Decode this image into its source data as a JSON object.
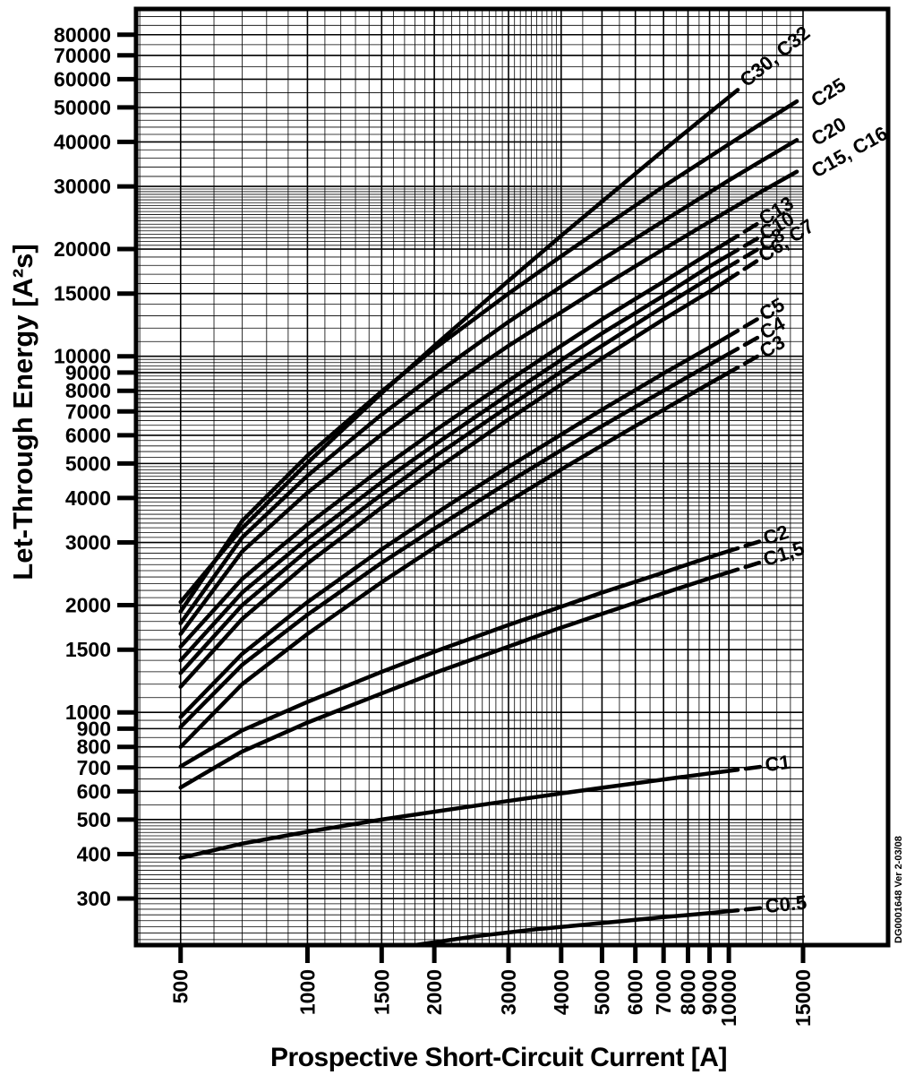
{
  "page": {
    "background": "#ffffff",
    "ink": "#000000"
  },
  "footer": {
    "doc_number": "DG0001648 Ver 2-03/08"
  },
  "chart_data": {
    "type": "line",
    "title": "",
    "xlabel": "Prospective Short-Circuit Current [A]",
    "ylabel": "Let-Through Energy [A²s]",
    "x_scale": "log",
    "y_scale": "log",
    "x_range": [
      392,
      15000
    ],
    "y_range": [
      222,
      94500
    ],
    "grid": true,
    "x_ticks": [
      500,
      1000,
      1500,
      2000,
      3000,
      4000,
      5000,
      6000,
      7000,
      8000,
      9000,
      10000,
      15000
    ],
    "y_ticks": [
      300,
      400,
      500,
      600,
      700,
      800,
      900,
      1000,
      1500,
      2000,
      3000,
      4000,
      5000,
      6000,
      7000,
      8000,
      9000,
      10000,
      15000,
      20000,
      30000,
      40000,
      50000,
      60000,
      70000,
      80000
    ],
    "x_minor": [
      {
        "from": 400,
        "to": 4000,
        "step": 100
      },
      {
        "from": 4000,
        "to": 10000,
        "step": 500
      },
      {
        "from": 10000,
        "to": 15000,
        "step": 1000
      }
    ],
    "y_minor": [
      {
        "from": 230,
        "to": 500,
        "step": 10
      },
      {
        "from": 500,
        "to": 1000,
        "step": 50
      },
      {
        "from": 1000,
        "to": 5000,
        "step": 100
      },
      {
        "from": 5000,
        "to": 10000,
        "step": 200
      },
      {
        "from": 10000,
        "to": 20000,
        "step": 1000
      },
      {
        "from": 20000,
        "to": 30000,
        "step": 500
      },
      {
        "from": 30000,
        "to": 50000,
        "step": 2000
      },
      {
        "from": 50000,
        "to": 90000,
        "step": 5000
      }
    ],
    "legend_position": "labels-at-curve-ends",
    "series": [
      {
        "name": "C30, C32",
        "leader": false,
        "label_outside": false,
        "points": [
          [
            500,
            2040
          ],
          [
            700,
            3290
          ],
          [
            1000,
            5020
          ],
          [
            1500,
            7880
          ],
          [
            2000,
            10700
          ],
          [
            3000,
            16300
          ],
          [
            4000,
            21800
          ],
          [
            5000,
            27200
          ],
          [
            7000,
            37900
          ],
          [
            9000,
            48300
          ],
          [
            10500,
            56000
          ]
        ]
      },
      {
        "name": "C25",
        "leader": false,
        "label_outside": true,
        "points": [
          [
            500,
            1920
          ],
          [
            700,
            3450
          ],
          [
            1000,
            5260
          ],
          [
            1500,
            7970
          ],
          [
            2000,
            10500
          ],
          [
            3000,
            15000
          ],
          [
            4000,
            19100
          ],
          [
            5000,
            22900
          ],
          [
            7000,
            30000
          ],
          [
            10000,
            39400
          ],
          [
            12000,
            45200
          ],
          [
            14500,
            52000
          ]
        ]
      },
      {
        "name": "C20",
        "leader": false,
        "label_outside": true,
        "points": [
          [
            500,
            1780
          ],
          [
            700,
            3100
          ],
          [
            1000,
            4620
          ],
          [
            1500,
            6860
          ],
          [
            2000,
            8870
          ],
          [
            3000,
            12500
          ],
          [
            4000,
            15700
          ],
          [
            5000,
            18700
          ],
          [
            7000,
            24000
          ],
          [
            10000,
            31200
          ],
          [
            12000,
            35500
          ],
          [
            14500,
            40500
          ]
        ]
      },
      {
        "name": "C15, C16",
        "leader": false,
        "label_outside": true,
        "points": [
          [
            500,
            1660
          ],
          [
            700,
            2830
          ],
          [
            1000,
            4140
          ],
          [
            1500,
            6030
          ],
          [
            2000,
            7720
          ],
          [
            3000,
            10700
          ],
          [
            4000,
            13300
          ],
          [
            5000,
            15700
          ],
          [
            7000,
            20000
          ],
          [
            10000,
            25700
          ],
          [
            12000,
            29100
          ],
          [
            14500,
            33000
          ]
        ]
      },
      {
        "name": "C13",
        "leader": true,
        "label_outside": false,
        "points": [
          [
            500,
            1530
          ],
          [
            700,
            2370
          ],
          [
            1000,
            3370
          ],
          [
            1500,
            4840
          ],
          [
            2000,
            6170
          ],
          [
            3000,
            8540
          ],
          [
            4000,
            10700
          ],
          [
            5000,
            12700
          ],
          [
            7000,
            16200
          ],
          [
            9000,
            19500
          ],
          [
            10500,
            21800
          ]
        ]
      },
      {
        "name": "C10",
        "leader": true,
        "label_outside": false,
        "points": [
          [
            500,
            1400
          ],
          [
            700,
            2170
          ],
          [
            1000,
            3080
          ],
          [
            1500,
            4430
          ],
          [
            2000,
            5640
          ],
          [
            3000,
            7810
          ],
          [
            4000,
            9760
          ],
          [
            5000,
            11600
          ],
          [
            7000,
            14800
          ],
          [
            9000,
            17900
          ],
          [
            10500,
            19900
          ]
        ]
      },
      {
        "name": "C8",
        "leader": true,
        "label_outside": false,
        "points": [
          [
            500,
            1290
          ],
          [
            700,
            2000
          ],
          [
            1000,
            2850
          ],
          [
            1500,
            4090
          ],
          [
            2000,
            5220
          ],
          [
            3000,
            7230
          ],
          [
            4000,
            9050
          ],
          [
            5000,
            10700
          ],
          [
            7000,
            13800
          ],
          [
            9000,
            16600
          ],
          [
            10500,
            18500
          ]
        ]
      },
      {
        "name": "C6, C7",
        "leader": true,
        "label_outside": false,
        "points": [
          [
            500,
            1180
          ],
          [
            700,
            1830
          ],
          [
            1000,
            2620
          ],
          [
            1500,
            3760
          ],
          [
            2000,
            4790
          ],
          [
            3000,
            6650
          ],
          [
            4000,
            8330
          ],
          [
            5000,
            9870
          ],
          [
            7000,
            12700
          ],
          [
            9000,
            15200
          ],
          [
            10500,
            17100
          ]
        ]
      },
      {
        "name": "C5",
        "leader": true,
        "label_outside": false,
        "points": [
          [
            500,
            970
          ],
          [
            700,
            1460
          ],
          [
            1000,
            2040
          ],
          [
            1500,
            2870
          ],
          [
            2000,
            3600
          ],
          [
            3000,
            4890
          ],
          [
            4000,
            6030
          ],
          [
            5000,
            7080
          ],
          [
            7000,
            8950
          ],
          [
            9000,
            10600
          ],
          [
            10500,
            11800
          ]
        ]
      },
      {
        "name": "C4",
        "leader": true,
        "label_outside": false,
        "points": [
          [
            500,
            910
          ],
          [
            700,
            1360
          ],
          [
            1000,
            1880
          ],
          [
            1500,
            2630
          ],
          [
            2000,
            3280
          ],
          [
            3000,
            4430
          ],
          [
            4000,
            5450
          ],
          [
            5000,
            6370
          ],
          [
            7000,
            8010
          ],
          [
            9000,
            9480
          ],
          [
            10500,
            10500
          ]
        ]
      },
      {
        "name": "C3",
        "leader": true,
        "label_outside": false,
        "points": [
          [
            500,
            800
          ],
          [
            700,
            1200
          ],
          [
            1000,
            1660
          ],
          [
            1500,
            2320
          ],
          [
            2000,
            2900
          ],
          [
            3000,
            3910
          ],
          [
            4000,
            4810
          ],
          [
            5000,
            5620
          ],
          [
            7000,
            7080
          ],
          [
            9000,
            8390
          ],
          [
            10500,
            9300
          ]
        ]
      },
      {
        "name": "C2",
        "leader": true,
        "label_outside": false,
        "points": [
          [
            500,
            705
          ],
          [
            700,
            890
          ],
          [
            1000,
            1070
          ],
          [
            1500,
            1300
          ],
          [
            2000,
            1480
          ],
          [
            3000,
            1760
          ],
          [
            4000,
            1980
          ],
          [
            5000,
            2170
          ],
          [
            7000,
            2470
          ],
          [
            9000,
            2730
          ],
          [
            10500,
            2890
          ]
        ]
      },
      {
        "name": "C1,5",
        "leader": true,
        "label_outside": false,
        "points": [
          [
            500,
            615
          ],
          [
            700,
            776
          ],
          [
            1000,
            936
          ],
          [
            1500,
            1130
          ],
          [
            2000,
            1290
          ],
          [
            3000,
            1530
          ],
          [
            4000,
            1730
          ],
          [
            5000,
            1890
          ],
          [
            7000,
            2160
          ],
          [
            9000,
            2380
          ],
          [
            10500,
            2520
          ]
        ]
      },
      {
        "name": "C1",
        "leader": true,
        "label_outside": false,
        "points": [
          [
            500,
            390
          ],
          [
            700,
            428
          ],
          [
            1000,
            462
          ],
          [
            1500,
            500
          ],
          [
            2000,
            526
          ],
          [
            3000,
            564
          ],
          [
            4000,
            592
          ],
          [
            5000,
            614
          ],
          [
            7000,
            648
          ],
          [
            9000,
            674
          ],
          [
            10500,
            690
          ]
        ]
      },
      {
        "name": "C0.5",
        "leader": true,
        "label_outside": false,
        "points": [
          [
            1800,
            222
          ],
          [
            2500,
            235
          ],
          [
            3500,
            246
          ],
          [
            5000,
            256
          ],
          [
            7000,
            266
          ],
          [
            9000,
            273
          ],
          [
            10500,
            278
          ]
        ]
      }
    ]
  }
}
